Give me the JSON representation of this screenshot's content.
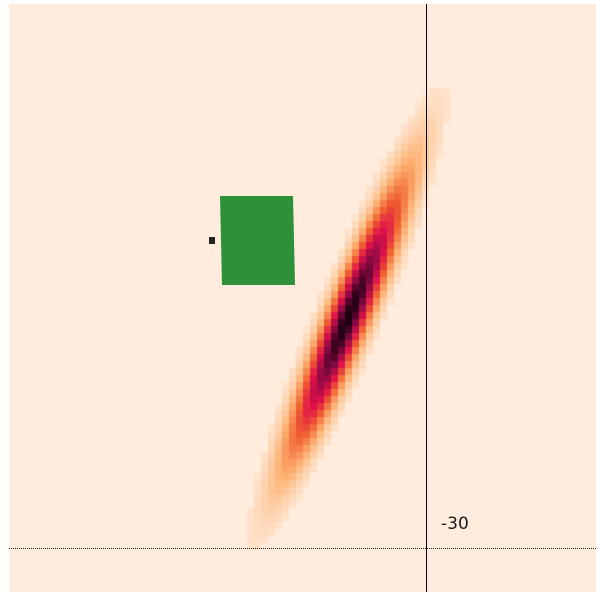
{
  "plot": {
    "background_color": "#ffecdc",
    "heatmap_colors": [
      "#ffecdc",
      "#fdb070",
      "#f06030",
      "#e0104a",
      "#8a0a44",
      "#1a0010"
    ],
    "block_color": "#2e9038",
    "crosshair_color": "#000000",
    "value_label": "-30"
  }
}
